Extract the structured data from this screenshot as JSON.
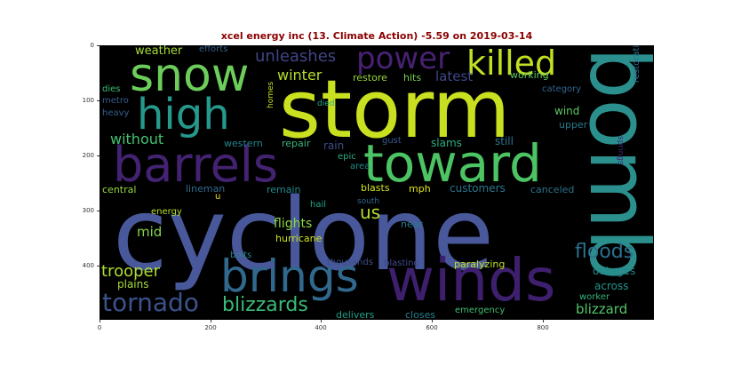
{
  "title": "xcel energy inc (13. Climate Action) -5.59 on 2019-03-14",
  "x_ticks": [
    "0",
    "200",
    "400",
    "600",
    "800"
  ],
  "y_ticks": [
    "0",
    "100",
    "200",
    "300",
    "400"
  ],
  "colors": {
    "title": "#8b0000",
    "background": "#000000"
  },
  "words": [
    "cyclone",
    "storm",
    "bomb",
    "winds",
    "toward",
    "barrels",
    "brings",
    "snow",
    "high",
    "killed",
    "power",
    "tornado",
    "blizzards",
    "floods",
    "us",
    "trooper",
    "unleashes",
    "winter",
    "latest",
    "weather",
    "mid",
    "flights",
    "blizzard",
    "without",
    "customers",
    "outages",
    "across",
    "efforts",
    "restore",
    "hits",
    "working",
    "category",
    "dies",
    "metro",
    "heavy",
    "restoration",
    "died",
    "homes",
    "wind",
    "upper",
    "western",
    "repair",
    "rain",
    "epic",
    "area",
    "gust",
    "slams",
    "still",
    "springs",
    "central",
    "lineman",
    "remain",
    "blasts",
    "mph",
    "canceled",
    "south",
    "energy",
    "u",
    "hail",
    "hurricane",
    "near",
    "bolts",
    "plains",
    "thousands",
    "blasting",
    "paralyzing",
    "worker",
    "delivers",
    "closes",
    "emergency"
  ]
}
